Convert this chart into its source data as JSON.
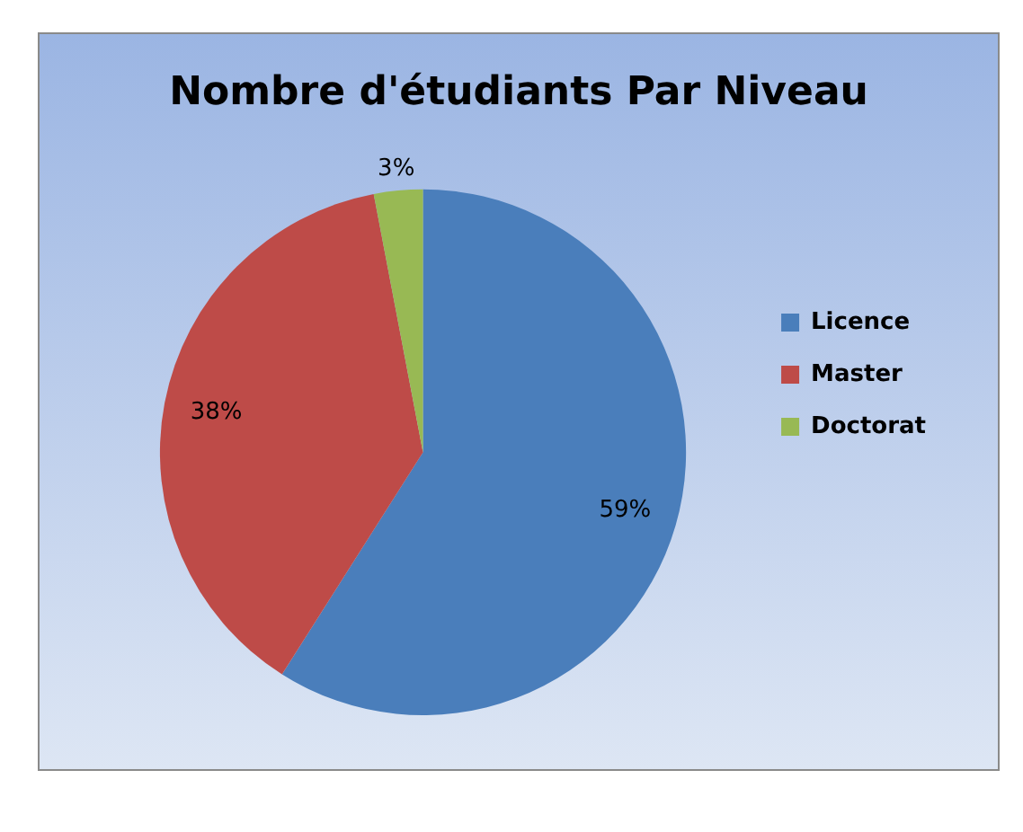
{
  "chart_data": {
    "type": "pie",
    "title": "Nombre d'étudiants Par Niveau",
    "categories": [
      "Licence",
      "Master",
      "Doctorat"
    ],
    "values": [
      59,
      38,
      3
    ],
    "colors": [
      "#4a7ebb",
      "#be4b48",
      "#98b954"
    ],
    "value_labels": [
      "59%",
      "38%",
      "3%"
    ],
    "legend": "right"
  }
}
